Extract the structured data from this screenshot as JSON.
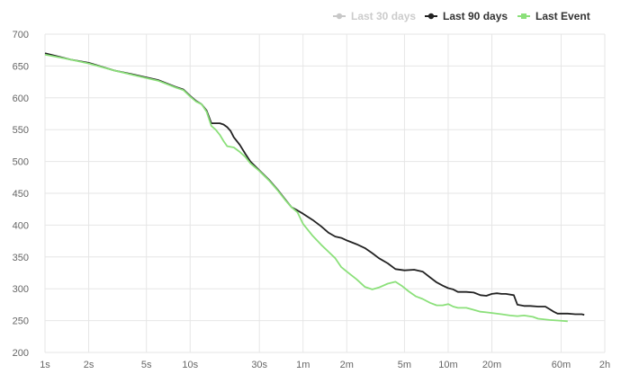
{
  "chart_data": {
    "type": "line",
    "title": "",
    "xlabel": "",
    "ylabel": "",
    "x_scale": "log",
    "x_unit": "seconds",
    "xlim": [
      1,
      7200
    ],
    "ylim": [
      200,
      700
    ],
    "grid": true,
    "legend_position": "top-right",
    "x_ticks": [
      {
        "value": 1,
        "label": "1s"
      },
      {
        "value": 2,
        "label": "2s"
      },
      {
        "value": 5,
        "label": "5s"
      },
      {
        "value": 10,
        "label": "10s"
      },
      {
        "value": 30,
        "label": "30s"
      },
      {
        "value": 60,
        "label": "1m"
      },
      {
        "value": 120,
        "label": "2m"
      },
      {
        "value": 300,
        "label": "5m"
      },
      {
        "value": 600,
        "label": "10m"
      },
      {
        "value": 1200,
        "label": "20m"
      },
      {
        "value": 3600,
        "label": "60m"
      },
      {
        "value": 7200,
        "label": "2h"
      }
    ],
    "y_ticks": [
      {
        "value": 200,
        "label": "200"
      },
      {
        "value": 250,
        "label": "250"
      },
      {
        "value": 300,
        "label": "300"
      },
      {
        "value": 350,
        "label": "350"
      },
      {
        "value": 400,
        "label": "400"
      },
      {
        "value": 450,
        "label": "450"
      },
      {
        "value": 500,
        "label": "500"
      },
      {
        "value": 550,
        "label": "550"
      },
      {
        "value": 600,
        "label": "600"
      },
      {
        "value": 650,
        "label": "650"
      },
      {
        "value": 700,
        "label": "700"
      }
    ],
    "series": [
      {
        "name": "Last 30 days",
        "color": "#c8c8c8",
        "visible": false,
        "points": []
      },
      {
        "name": "Last 90 days",
        "color": "#222222",
        "visible": true,
        "points": [
          [
            1,
            670
          ],
          [
            1.5,
            660
          ],
          [
            2,
            655
          ],
          [
            3,
            643
          ],
          [
            4,
            637
          ],
          [
            5,
            632
          ],
          [
            6,
            628
          ],
          [
            7,
            622
          ],
          [
            8,
            617
          ],
          [
            9,
            613
          ],
          [
            10,
            603
          ],
          [
            11,
            595
          ],
          [
            12,
            590
          ],
          [
            13,
            580
          ],
          [
            14,
            560
          ],
          [
            16,
            560
          ],
          [
            17,
            558
          ],
          [
            18,
            554
          ],
          [
            19,
            548
          ],
          [
            20,
            538
          ],
          [
            22,
            526
          ],
          [
            24,
            512
          ],
          [
            26,
            500
          ],
          [
            30,
            486
          ],
          [
            35,
            471
          ],
          [
            40,
            456
          ],
          [
            45,
            441
          ],
          [
            50,
            428
          ],
          [
            55,
            423
          ],
          [
            60,
            418
          ],
          [
            70,
            408
          ],
          [
            80,
            398
          ],
          [
            90,
            388
          ],
          [
            100,
            382
          ],
          [
            110,
            380
          ],
          [
            120,
            376
          ],
          [
            140,
            370
          ],
          [
            160,
            364
          ],
          [
            180,
            356
          ],
          [
            200,
            348
          ],
          [
            230,
            340
          ],
          [
            260,
            331
          ],
          [
            300,
            329
          ],
          [
            350,
            330
          ],
          [
            400,
            327
          ],
          [
            450,
            318
          ],
          [
            500,
            310
          ],
          [
            550,
            305
          ],
          [
            600,
            301
          ],
          [
            650,
            299
          ],
          [
            700,
            295
          ],
          [
            800,
            295
          ],
          [
            900,
            294
          ],
          [
            1000,
            290
          ],
          [
            1100,
            289
          ],
          [
            1200,
            292
          ],
          [
            1300,
            293
          ],
          [
            1400,
            292
          ],
          [
            1500,
            292
          ],
          [
            1700,
            290
          ],
          [
            1800,
            275
          ],
          [
            2000,
            273
          ],
          [
            2200,
            273
          ],
          [
            2500,
            272
          ],
          [
            2800,
            272
          ],
          [
            3000,
            268
          ],
          [
            3200,
            264
          ],
          [
            3400,
            261
          ],
          [
            3700,
            261
          ],
          [
            4000,
            261
          ],
          [
            4500,
            260
          ],
          [
            5000,
            260
          ],
          [
            5200,
            259
          ]
        ]
      },
      {
        "name": "Last Event",
        "color": "#8be07a",
        "visible": true,
        "points": [
          [
            1,
            668
          ],
          [
            1.5,
            660
          ],
          [
            2,
            654
          ],
          [
            3,
            643
          ],
          [
            4,
            636
          ],
          [
            5,
            631
          ],
          [
            6,
            627
          ],
          [
            7,
            621
          ],
          [
            8,
            616
          ],
          [
            9,
            612
          ],
          [
            10,
            602
          ],
          [
            11,
            594
          ],
          [
            12,
            590
          ],
          [
            13,
            578
          ],
          [
            14,
            556
          ],
          [
            15,
            550
          ],
          [
            16,
            542
          ],
          [
            17,
            532
          ],
          [
            18,
            524
          ],
          [
            20,
            522
          ],
          [
            22,
            515
          ],
          [
            24,
            507
          ],
          [
            26,
            497
          ],
          [
            30,
            485
          ],
          [
            35,
            470
          ],
          [
            40,
            455
          ],
          [
            45,
            440
          ],
          [
            50,
            428
          ],
          [
            55,
            420
          ],
          [
            60,
            402
          ],
          [
            70,
            383
          ],
          [
            80,
            369
          ],
          [
            90,
            358
          ],
          [
            100,
            348
          ],
          [
            110,
            334
          ],
          [
            120,
            327
          ],
          [
            140,
            315
          ],
          [
            160,
            303
          ],
          [
            180,
            299
          ],
          [
            200,
            302
          ],
          [
            230,
            308
          ],
          [
            260,
            311
          ],
          [
            290,
            304
          ],
          [
            320,
            296
          ],
          [
            360,
            288
          ],
          [
            400,
            284
          ],
          [
            450,
            278
          ],
          [
            500,
            274
          ],
          [
            550,
            274
          ],
          [
            600,
            276
          ],
          [
            650,
            272
          ],
          [
            700,
            270
          ],
          [
            800,
            270
          ],
          [
            900,
            267
          ],
          [
            1000,
            264
          ],
          [
            1100,
            263
          ],
          [
            1200,
            262
          ],
          [
            1400,
            260
          ],
          [
            1600,
            258
          ],
          [
            1800,
            257
          ],
          [
            2000,
            258
          ],
          [
            2300,
            256
          ],
          [
            2500,
            253
          ],
          [
            3000,
            251
          ],
          [
            3500,
            250
          ],
          [
            4000,
            249
          ]
        ]
      }
    ]
  }
}
